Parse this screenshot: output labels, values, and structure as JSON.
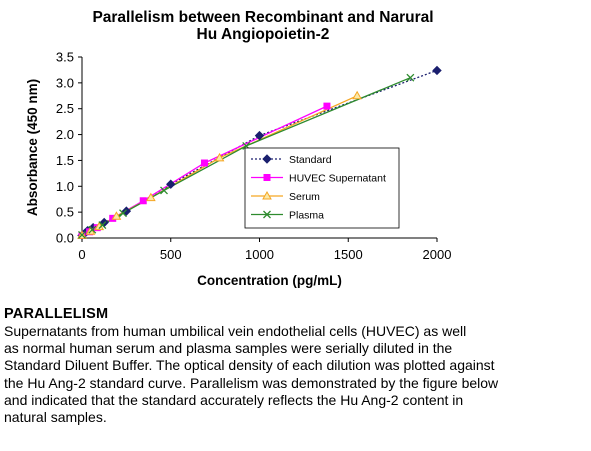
{
  "chart_data": {
    "type": "line",
    "title_lines": [
      "Parallelism between Recombinant and Narural",
      "Hu Angiopoietin-2"
    ],
    "xlabel": "Concentration (pg/mL)",
    "ylabel": "Absorbance (450 nm)",
    "xlim": [
      0,
      2000
    ],
    "ylim": [
      0,
      3.5
    ],
    "xticks": [
      "0",
      "500",
      "1000",
      "1500",
      "2000"
    ],
    "yticks": [
      "0.0",
      "0.5",
      "1.0",
      "1.5",
      "2.0",
      "2.5",
      "3.0",
      "3.5"
    ],
    "grid": false,
    "legend_position": "right-center inside plot",
    "series": [
      {
        "name": "Standard",
        "color": "#1a1f6e",
        "marker": "diamond",
        "dashed": true,
        "x": [
          0,
          15.6,
          31.25,
          62.5,
          125,
          250,
          500,
          1000,
          2000
        ],
        "y": [
          0.05,
          0.09,
          0.14,
          0.2,
          0.3,
          0.52,
          1.04,
          1.98,
          3.24
        ]
      },
      {
        "name": "HUVEC Supernatant",
        "color": "#ff00ff",
        "marker": "square",
        "dashed": false,
        "x": [
          0,
          43,
          86,
          173,
          345,
          690,
          1380
        ],
        "y": [
          0.05,
          0.12,
          0.2,
          0.38,
          0.72,
          1.45,
          2.55
        ]
      },
      {
        "name": "Serum",
        "color": "#f5a623",
        "marker": "triangle",
        "dashed": false,
        "x": [
          0,
          48,
          97,
          194,
          388,
          775,
          1550
        ],
        "y": [
          0.05,
          0.13,
          0.22,
          0.42,
          0.78,
          1.55,
          2.75
        ]
      },
      {
        "name": "Plasma",
        "color": "#2e8b2e",
        "marker": "x",
        "dashed": false,
        "x": [
          0,
          58,
          115,
          231,
          462,
          925,
          1850
        ],
        "y": [
          0.06,
          0.16,
          0.25,
          0.48,
          0.92,
          1.78,
          3.1
        ]
      }
    ]
  },
  "text_section": {
    "heading": "PARALLELISM",
    "lines": [
      "Supernatants from human umbilical vein endothelial cells (HUVEC) as well",
      "as normal human serum and plasma samples were serially diluted in the",
      "Standard Diluent Buffer. The optical density of each dilution was plotted against",
      "the Hu Ang-2 standard curve. Parallelism was demonstrated by the figure below",
      "and indicated that the standard accurately reflects the Hu Ang-2 content in",
      "natural samples."
    ]
  }
}
